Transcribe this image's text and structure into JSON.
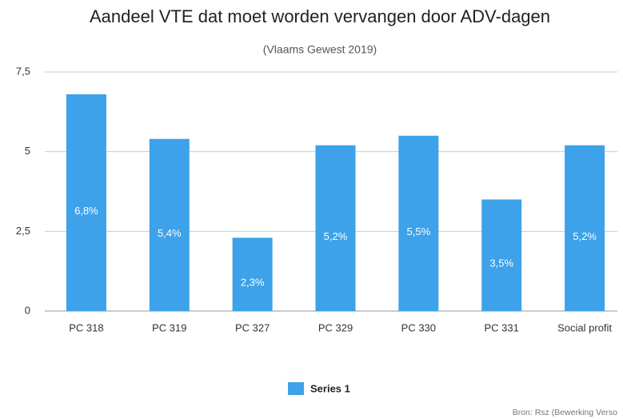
{
  "chart_data": {
    "type": "bar",
    "title": "Aandeel VTE dat moet worden vervangen door ADV-dagen",
    "subtitle": "(Vlaams Gewest 2019)",
    "categories": [
      "PC 318",
      "PC 319",
      "PC 327",
      "PC 329",
      "PC 330",
      "PC 331",
      "Social profit"
    ],
    "series": [
      {
        "name": "Series 1",
        "color": "#3da2e9",
        "values": [
          6.8,
          5.4,
          2.3,
          5.2,
          5.5,
          3.5,
          5.2
        ],
        "value_labels": [
          "6,8%",
          "5,4%",
          "2,3%",
          "5,2%",
          "5,5%",
          "3,5%",
          "5,2%"
        ]
      }
    ],
    "ylim": [
      0,
      7.5
    ],
    "yticks": [
      0,
      {
        "value": 2.5,
        "label": "2,5"
      },
      5,
      {
        "value": 7.5,
        "label": "7,5"
      }
    ],
    "grid": true,
    "legend": "bottom",
    "source": "Bron: Rsz (Bewerking Verso"
  }
}
